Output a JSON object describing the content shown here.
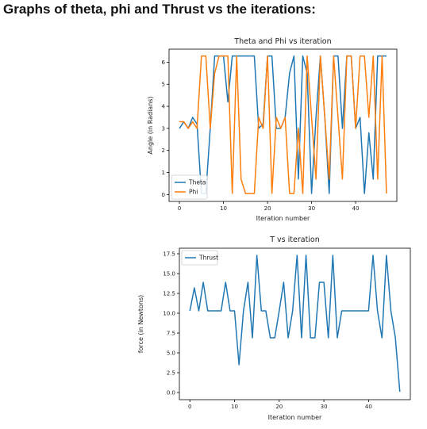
{
  "heading": "Graphs of theta, phi and Thrust vs the iterations:",
  "colors": {
    "blue": "#1f77b4",
    "orange": "#ff7f0e"
  },
  "chart_data": [
    {
      "type": "line",
      "title": "Theta and Phi vs iteration",
      "xlabel": "Iteration number",
      "ylabel": "Angle (in Radians)",
      "xlim": [
        -2.35,
        49.35
      ],
      "ylim": [
        -0.31,
        6.59
      ],
      "xticks": [
        "0",
        "10",
        "20",
        "30",
        "40"
      ],
      "yticks": [
        "0",
        "1",
        "2",
        "3",
        "4",
        "5",
        "6"
      ],
      "legend_position": "lower-left",
      "x": [
        0,
        1,
        2,
        3,
        4,
        5,
        6,
        7,
        8,
        9,
        10,
        11,
        12,
        13,
        14,
        15,
        16,
        17,
        18,
        19,
        20,
        21,
        22,
        23,
        24,
        25,
        26,
        27,
        28,
        29,
        30,
        31,
        32,
        33,
        34,
        35,
        36,
        37,
        38,
        39,
        40,
        41,
        42,
        43,
        44,
        45,
        46,
        47
      ],
      "series": [
        {
          "name": "Theta",
          "color": "#1f77b4",
          "values": [
            3.0,
            3.3,
            3.0,
            3.5,
            3.2,
            0.05,
            0.05,
            3.0,
            6.28,
            6.28,
            6.28,
            4.2,
            6.28,
            6.28,
            6.28,
            6.28,
            6.28,
            6.28,
            3.0,
            3.2,
            6.28,
            6.28,
            3.0,
            3.0,
            3.5,
            5.5,
            6.28,
            0.7,
            6.28,
            5.5,
            0.05,
            3.5,
            6.28,
            3.5,
            0.05,
            6.28,
            6.28,
            3.0,
            6.28,
            6.28,
            3.0,
            3.5,
            0.05,
            2.8,
            0.7,
            6.28,
            6.28,
            6.28
          ]
        },
        {
          "name": "Phi",
          "color": "#ff7f0e",
          "values": [
            3.3,
            3.3,
            3.0,
            3.3,
            3.0,
            6.28,
            6.28,
            3.0,
            5.5,
            6.28,
            6.28,
            6.28,
            0.05,
            6.28,
            0.7,
            0.05,
            0.05,
            0.05,
            3.5,
            3.0,
            6.28,
            0.05,
            3.5,
            3.0,
            3.5,
            0.05,
            0.05,
            3.0,
            0.05,
            6.28,
            3.5,
            0.7,
            6.28,
            3.5,
            0.7,
            6.28,
            3.5,
            0.7,
            6.28,
            6.28,
            3.0,
            6.28,
            6.28,
            3.5,
            6.28,
            0.7,
            6.28,
            0.05
          ]
        }
      ]
    },
    {
      "type": "line",
      "title": "T vs iteration",
      "xlabel": "Iteration number",
      "ylabel": "force (in Newtons)",
      "xlim": [
        -2.35,
        49.35
      ],
      "ylim": [
        -0.9,
        18.2
      ],
      "xticks": [
        "0",
        "10",
        "20",
        "30",
        "40"
      ],
      "yticks": [
        "0.0",
        "2.5",
        "5.0",
        "7.5",
        "10.0",
        "12.5",
        "15.0",
        "17.5"
      ],
      "legend_position": "upper-left",
      "x": [
        0,
        1,
        2,
        3,
        4,
        5,
        6,
        7,
        8,
        9,
        10,
        11,
        12,
        13,
        14,
        15,
        16,
        17,
        18,
        19,
        20,
        21,
        22,
        23,
        24,
        25,
        26,
        27,
        28,
        29,
        30,
        31,
        32,
        33,
        34,
        35,
        36,
        37,
        38,
        39,
        40,
        41,
        42,
        43,
        44,
        45,
        46,
        47
      ],
      "series": [
        {
          "name": "Thrust",
          "color": "#1f77b4",
          "values": [
            10.3,
            13.2,
            10.3,
            13.9,
            10.3,
            10.3,
            10.3,
            10.3,
            13.9,
            10.3,
            10.3,
            3.5,
            10.3,
            13.9,
            6.9,
            17.3,
            10.3,
            10.3,
            6.9,
            6.9,
            10.3,
            13.9,
            6.9,
            10.3,
            17.3,
            6.9,
            17.3,
            6.9,
            6.9,
            13.9,
            13.9,
            6.9,
            17.3,
            6.9,
            10.3,
            10.3,
            10.3,
            10.3,
            10.3,
            10.3,
            10.3,
            17.3,
            10.3,
            6.9,
            17.3,
            10.3,
            6.9,
            0.1
          ]
        }
      ]
    }
  ]
}
